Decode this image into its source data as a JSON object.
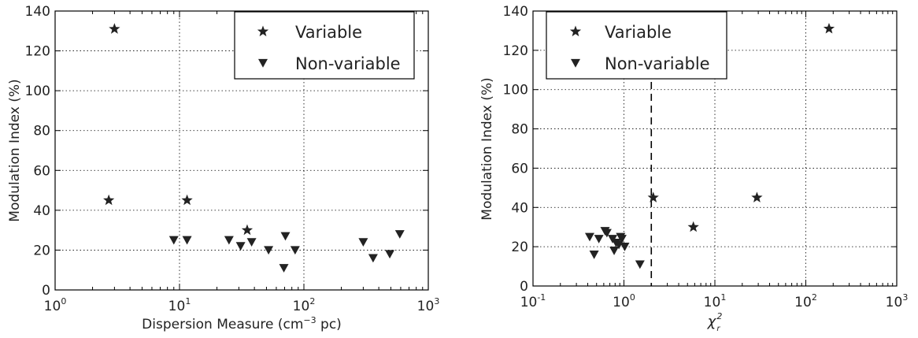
{
  "chart_data": [
    {
      "type": "scatter",
      "xscale": "log",
      "xlim": [
        1,
        1000
      ],
      "ylim": [
        0,
        140
      ],
      "xlabel": "Dispersion Measure (cm",
      "xlabel_exp": "−3",
      "xlabel_tail": " pc)",
      "ylabel": "Modulation Index (%)",
      "grid": true,
      "legend_position": "top-right",
      "x_tick_bases": [
        "10",
        "10",
        "10",
        "10"
      ],
      "x_tick_exps": [
        "0",
        "1",
        "2",
        "3"
      ],
      "y_ticks": [
        "0",
        "20",
        "40",
        "60",
        "80",
        "100",
        "120",
        "140"
      ],
      "series": [
        {
          "name": "Variable",
          "marker": "star",
          "x": [
            3.0,
            2.7,
            11.5,
            35
          ],
          "y": [
            131,
            45,
            45,
            30
          ]
        },
        {
          "name": "Non-variable",
          "marker": "triangle-down",
          "x": [
            9,
            11.5,
            25,
            31,
            38,
            52,
            69,
            71,
            85,
            300,
            360,
            490,
            590
          ],
          "y": [
            25,
            25,
            25,
            22,
            24,
            20,
            11,
            27,
            20,
            24,
            16,
            18,
            28
          ]
        }
      ]
    },
    {
      "type": "scatter",
      "xscale": "log",
      "xlim": [
        0.1,
        1000
      ],
      "ylim": [
        0,
        140
      ],
      "xlabel": "χ",
      "xlabel_sup": "2",
      "xlabel_sub": "r",
      "ylabel": "Modulation Index (%)",
      "grid": true,
      "legend_position": "top-left",
      "vline_x": 2.0,
      "x_tick_bases": [
        "10",
        "10",
        "10",
        "10",
        "10"
      ],
      "x_tick_exps": [
        "-1",
        "0",
        "1",
        "2",
        "3"
      ],
      "y_ticks": [
        "0",
        "20",
        "40",
        "60",
        "80",
        "100",
        "120",
        "140"
      ],
      "series": [
        {
          "name": "Variable",
          "marker": "star",
          "x": [
            180,
            2.1,
            29,
            5.8
          ],
          "y": [
            131,
            45,
            45,
            30
          ]
        },
        {
          "name": "Non-variable",
          "marker": "triangle-down",
          "x": [
            0.42,
            0.47,
            0.53,
            0.62,
            0.65,
            0.75,
            0.78,
            0.82,
            0.88,
            0.92,
            0.95,
            1.02,
            1.5
          ],
          "y": [
            25,
            16,
            24,
            28,
            27,
            24,
            18,
            22,
            21,
            25,
            24,
            20,
            11
          ]
        }
      ]
    }
  ]
}
